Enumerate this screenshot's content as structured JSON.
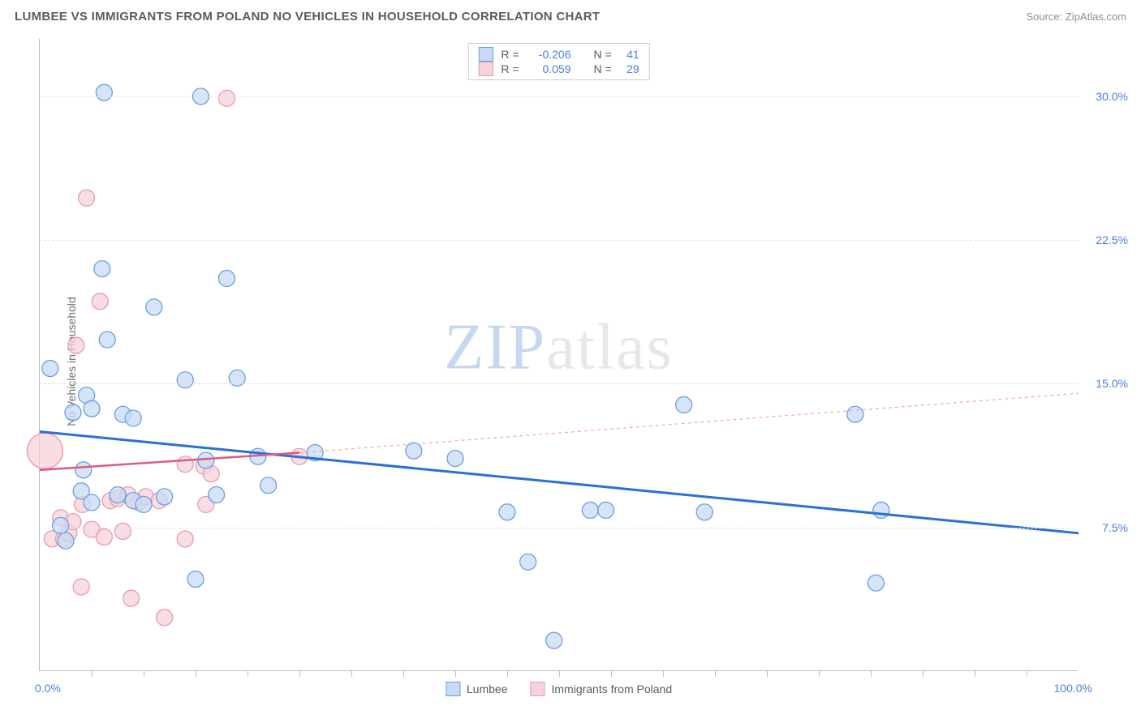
{
  "header": {
    "title": "LUMBEE VS IMMIGRANTS FROM POLAND NO VEHICLES IN HOUSEHOLD CORRELATION CHART",
    "source_prefix": "Source: ",
    "source_link": "ZipAtlas.com"
  },
  "watermark": {
    "zip": "ZIP",
    "atlas": "atlas"
  },
  "chart": {
    "type": "scatter",
    "ylabel": "No Vehicles in Household",
    "background_color": "#ffffff",
    "grid_color": "#dfe3e7",
    "axis_color": "#b9bfc5",
    "tick_label_color": "#4a7fe0",
    "xlim": [
      0,
      100
    ],
    "ylim": [
      0,
      33
    ],
    "y_ticks": [
      7.5,
      15.0,
      22.5,
      30.0
    ],
    "y_tick_labels": [
      "7.5%",
      "15.0%",
      "22.5%",
      "30.0%"
    ],
    "x_ticks": [
      0,
      50,
      100
    ],
    "x_tick_labels": [
      "0.0%",
      "",
      "100.0%"
    ],
    "x_minor_ticks": [
      5,
      10,
      15,
      20,
      25,
      30,
      35,
      40,
      45,
      50,
      55,
      60,
      65,
      70,
      75,
      80,
      85,
      90,
      95
    ],
    "series": [
      {
        "name": "Lumbee",
        "color_fill": "#c8dbf4",
        "color_stroke": "#6b9fe3",
        "marker_radius": 10,
        "r": "-0.206",
        "n": "41",
        "trend": {
          "x1": 0,
          "y1": 12.5,
          "x2": 100,
          "y2": 7.2,
          "stroke": "#2b6fd9",
          "width": 3,
          "dash": ""
        },
        "trend_ext": null,
        "points": [
          {
            "x": 1.0,
            "y": 15.8
          },
          {
            "x": 2.0,
            "y": 7.6
          },
          {
            "x": 2.5,
            "y": 6.8
          },
          {
            "x": 3.2,
            "y": 13.5
          },
          {
            "x": 4.0,
            "y": 9.4
          },
          {
            "x": 4.5,
            "y": 14.4
          },
          {
            "x": 5.0,
            "y": 13.7
          },
          {
            "x": 5.0,
            "y": 8.8
          },
          {
            "x": 6.0,
            "y": 21.0
          },
          {
            "x": 6.2,
            "y": 30.2
          },
          {
            "x": 6.5,
            "y": 17.3
          },
          {
            "x": 7.5,
            "y": 9.2
          },
          {
            "x": 8.0,
            "y": 13.4
          },
          {
            "x": 9.0,
            "y": 8.9
          },
          {
            "x": 9.0,
            "y": 13.2
          },
          {
            "x": 10.0,
            "y": 8.7
          },
          {
            "x": 11.0,
            "y": 19.0
          },
          {
            "x": 12.0,
            "y": 9.1
          },
          {
            "x": 14.0,
            "y": 15.2
          },
          {
            "x": 15.0,
            "y": 4.8
          },
          {
            "x": 15.5,
            "y": 30.0
          },
          {
            "x": 16.0,
            "y": 11.0
          },
          {
            "x": 17.0,
            "y": 9.2
          },
          {
            "x": 18.0,
            "y": 20.5
          },
          {
            "x": 19.0,
            "y": 15.3
          },
          {
            "x": 21.0,
            "y": 11.2
          },
          {
            "x": 22.0,
            "y": 9.7
          },
          {
            "x": 26.5,
            "y": 11.4
          },
          {
            "x": 36.0,
            "y": 11.5
          },
          {
            "x": 40.0,
            "y": 11.1
          },
          {
            "x": 45.0,
            "y": 8.3
          },
          {
            "x": 47.0,
            "y": 5.7
          },
          {
            "x": 49.5,
            "y": 1.6
          },
          {
            "x": 53.0,
            "y": 8.4
          },
          {
            "x": 54.5,
            "y": 8.4
          },
          {
            "x": 62.0,
            "y": 13.9
          },
          {
            "x": 64.0,
            "y": 8.3
          },
          {
            "x": 78.5,
            "y": 13.4
          },
          {
            "x": 80.5,
            "y": 4.6
          },
          {
            "x": 81.0,
            "y": 8.4
          },
          {
            "x": 4.2,
            "y": 10.5
          }
        ]
      },
      {
        "name": "Immigrants from Poland",
        "color_fill": "#f6d2da",
        "color_stroke": "#e99ab0",
        "marker_radius": 10,
        "r": " 0.059",
        "n": "29",
        "trend": {
          "x1": 0,
          "y1": 10.5,
          "x2": 25,
          "y2": 11.4,
          "stroke": "#e05a7d",
          "width": 2.5,
          "dash": ""
        },
        "trend_ext": {
          "x1": 25,
          "y1": 11.4,
          "x2": 100,
          "y2": 14.5,
          "stroke": "#f0aebd",
          "width": 1.3,
          "dash": "4 4"
        },
        "points": [
          {
            "x": 0.5,
            "y": 11.5,
            "r": 22
          },
          {
            "x": 1.2,
            "y": 6.9
          },
          {
            "x": 2.0,
            "y": 8.0
          },
          {
            "x": 2.3,
            "y": 6.9
          },
          {
            "x": 2.8,
            "y": 7.2
          },
          {
            "x": 3.2,
            "y": 7.8
          },
          {
            "x": 3.5,
            "y": 17.0
          },
          {
            "x": 4.0,
            "y": 4.4
          },
          {
            "x": 4.1,
            "y": 8.7
          },
          {
            "x": 4.5,
            "y": 24.7
          },
          {
            "x": 5.0,
            "y": 7.4
          },
          {
            "x": 5.8,
            "y": 19.3
          },
          {
            "x": 6.2,
            "y": 7.0
          },
          {
            "x": 6.8,
            "y": 8.9
          },
          {
            "x": 7.5,
            "y": 9.0
          },
          {
            "x": 8.0,
            "y": 7.3
          },
          {
            "x": 8.5,
            "y": 9.2
          },
          {
            "x": 8.8,
            "y": 3.8
          },
          {
            "x": 9.5,
            "y": 8.8
          },
          {
            "x": 10.2,
            "y": 9.1
          },
          {
            "x": 11.5,
            "y": 8.9
          },
          {
            "x": 12.0,
            "y": 2.8
          },
          {
            "x": 14.0,
            "y": 6.9
          },
          {
            "x": 14.0,
            "y": 10.8
          },
          {
            "x": 15.8,
            "y": 10.7
          },
          {
            "x": 16.0,
            "y": 8.7
          },
          {
            "x": 16.5,
            "y": 10.3
          },
          {
            "x": 18.0,
            "y": 29.9
          },
          {
            "x": 25.0,
            "y": 11.2
          }
        ]
      }
    ],
    "legend_top_labels": {
      "r_label": "R =",
      "n_label": "N ="
    }
  }
}
